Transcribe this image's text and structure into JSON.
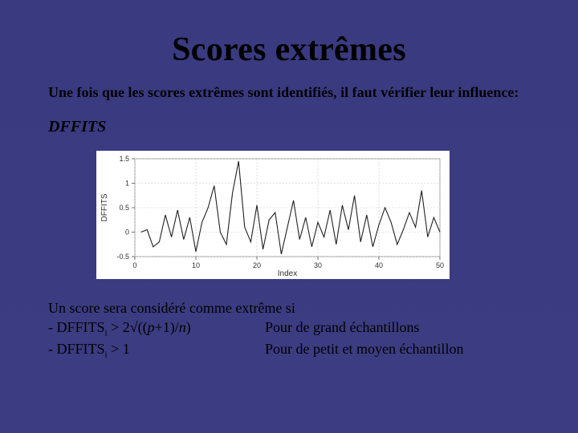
{
  "colors": {
    "background": "#3b3b7f",
    "text_primary": "#000000",
    "chart_bg": "#ffffff",
    "chart_line": "#202020",
    "chart_grid": "#c8c8c8",
    "chart_tick_text": "#303030"
  },
  "title": "Scores extrêmes",
  "subtitle": "Une fois que les scores extrêmes sont identifiés, il faut vérifier leur influence:",
  "section_label": "DFFITS",
  "chart": {
    "type": "line",
    "ylabel": "DFFITS",
    "xlabel": "Index",
    "xlim": [
      0,
      50
    ],
    "ylim": [
      -0.5,
      1.5
    ],
    "xticks": [
      0,
      10,
      20,
      30,
      40,
      50
    ],
    "xtick_labels": [
      "0",
      "10",
      "20",
      "30",
      "40",
      "50"
    ],
    "yticks": [
      -0.5,
      0,
      0.5,
      1,
      1.5
    ],
    "ytick_labels": [
      "-0.5",
      "0",
      "0.5",
      "1",
      "1.5"
    ],
    "grid": true,
    "grid_color": "#c8c8c8",
    "line_color": "#202020",
    "line_width": 1.1,
    "background_color": "#ffffff",
    "label_fontsize": 10,
    "tick_fontsize": 9,
    "series": {
      "x": [
        1,
        2,
        3,
        4,
        5,
        6,
        7,
        8,
        9,
        10,
        11,
        12,
        13,
        14,
        15,
        16,
        17,
        18,
        19,
        20,
        21,
        22,
        23,
        24,
        25,
        26,
        27,
        28,
        29,
        30,
        31,
        32,
        33,
        34,
        35,
        36,
        37,
        38,
        39,
        40,
        41,
        42,
        43,
        44,
        45,
        46,
        47,
        48,
        49,
        50
      ],
      "y": [
        0.0,
        0.05,
        -0.3,
        -0.2,
        0.35,
        -0.1,
        0.45,
        -0.15,
        0.3,
        -0.4,
        0.2,
        0.5,
        0.95,
        0.0,
        -0.25,
        0.8,
        1.45,
        0.1,
        -0.2,
        0.55,
        -0.35,
        0.25,
        0.4,
        -0.45,
        0.1,
        0.65,
        -0.15,
        0.3,
        -0.3,
        0.2,
        -0.1,
        0.45,
        -0.25,
        0.55,
        0.05,
        0.75,
        -0.2,
        0.35,
        -0.3,
        0.15,
        0.5,
        0.2,
        -0.25,
        0.05,
        0.4,
        0.1,
        0.85,
        -0.1,
        0.3,
        0.0
      ]
    }
  },
  "conclusion": {
    "intro": "Un score sera considéré comme extrême si",
    "rule1_left_prefix": "- DFFITS",
    "rule1_left_sub": "i",
    "rule1_left_rest": " > 2√((",
    "rule1_left_var": "p",
    "rule1_left_rest2": "+1)/",
    "rule1_left_var2": "n",
    "rule1_left_rest3": ")",
    "rule1_right": "Pour de grand échantillons",
    "rule2_left_prefix": "- DFFITS",
    "rule2_left_sub": "i",
    "rule2_left_rest": " > 1",
    "rule2_right": "Pour de petit et moyen échantillon"
  }
}
